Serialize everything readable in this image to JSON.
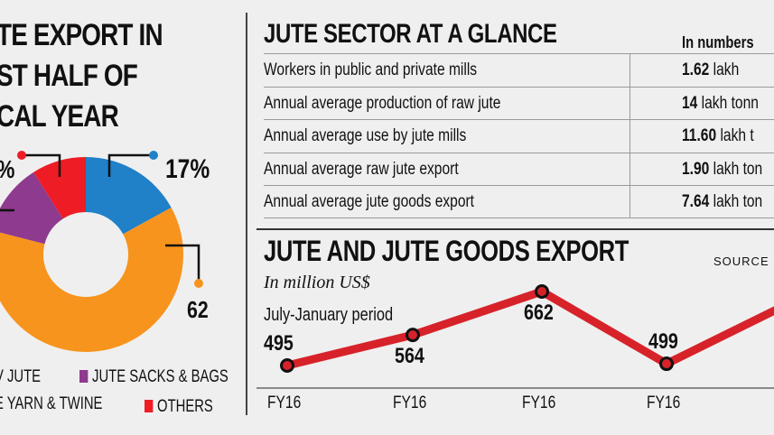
{
  "left": {
    "title_lines": [
      "TE EXPORT IN",
      "ST HALF OF",
      "CAL YEAR"
    ],
    "donut_labels": {
      "left_partial": "%",
      "blue": "17%",
      "orange": "62"
    },
    "legend": [
      {
        "label": "V JUTE",
        "color": "#f7941d"
      },
      {
        "label": "JUTE SACKS & BAGS",
        "color": "#8e3a8e"
      },
      {
        "label": "E YARN & TWINE",
        "color": "#2080c8"
      },
      {
        "label": "OTHERS",
        "color": "#ee1c25"
      }
    ]
  },
  "glance": {
    "title": "JUTE SECTOR AT A GLANCE",
    "col_header": "In numbers",
    "rows": [
      {
        "label": "Workers  in public and private mills",
        "num": "1.62",
        "unit": " lakh"
      },
      {
        "label": "Annual average production of raw jute",
        "num": "14",
        "unit": " lakh tonn"
      },
      {
        "label": "Annual average use by jute mills",
        "num": "11.60",
        "unit": " lakh t"
      },
      {
        "label": "Annual average raw jute export",
        "num": "1.90",
        "unit": " lakh ton"
      },
      {
        "label": "Annual average jute goods export",
        "num": "7.64",
        "unit": " lakh ton"
      }
    ]
  },
  "export_chart": {
    "title": "JUTE AND JUTE GOODS EXPORT",
    "source": "SOURCE",
    "unit": "In million US$",
    "period": "July-January period"
  },
  "chart_data": [
    {
      "type": "pie",
      "donut": true,
      "slices": [
        {
          "name": "blue",
          "value": 17,
          "color": "#2080c8"
        },
        {
          "name": "orange",
          "value": 62,
          "color": "#f7941d"
        },
        {
          "name": "purple",
          "value": 12,
          "color": "#8e3a8e"
        },
        {
          "name": "red",
          "value": 9,
          "color": "#ee1c25"
        }
      ]
    },
    {
      "type": "line",
      "categories": [
        "FY16",
        "FY16",
        "FY16",
        "FY16"
      ],
      "values": [
        495,
        564,
        662,
        499
      ],
      "color": "#d7222a"
    }
  ]
}
